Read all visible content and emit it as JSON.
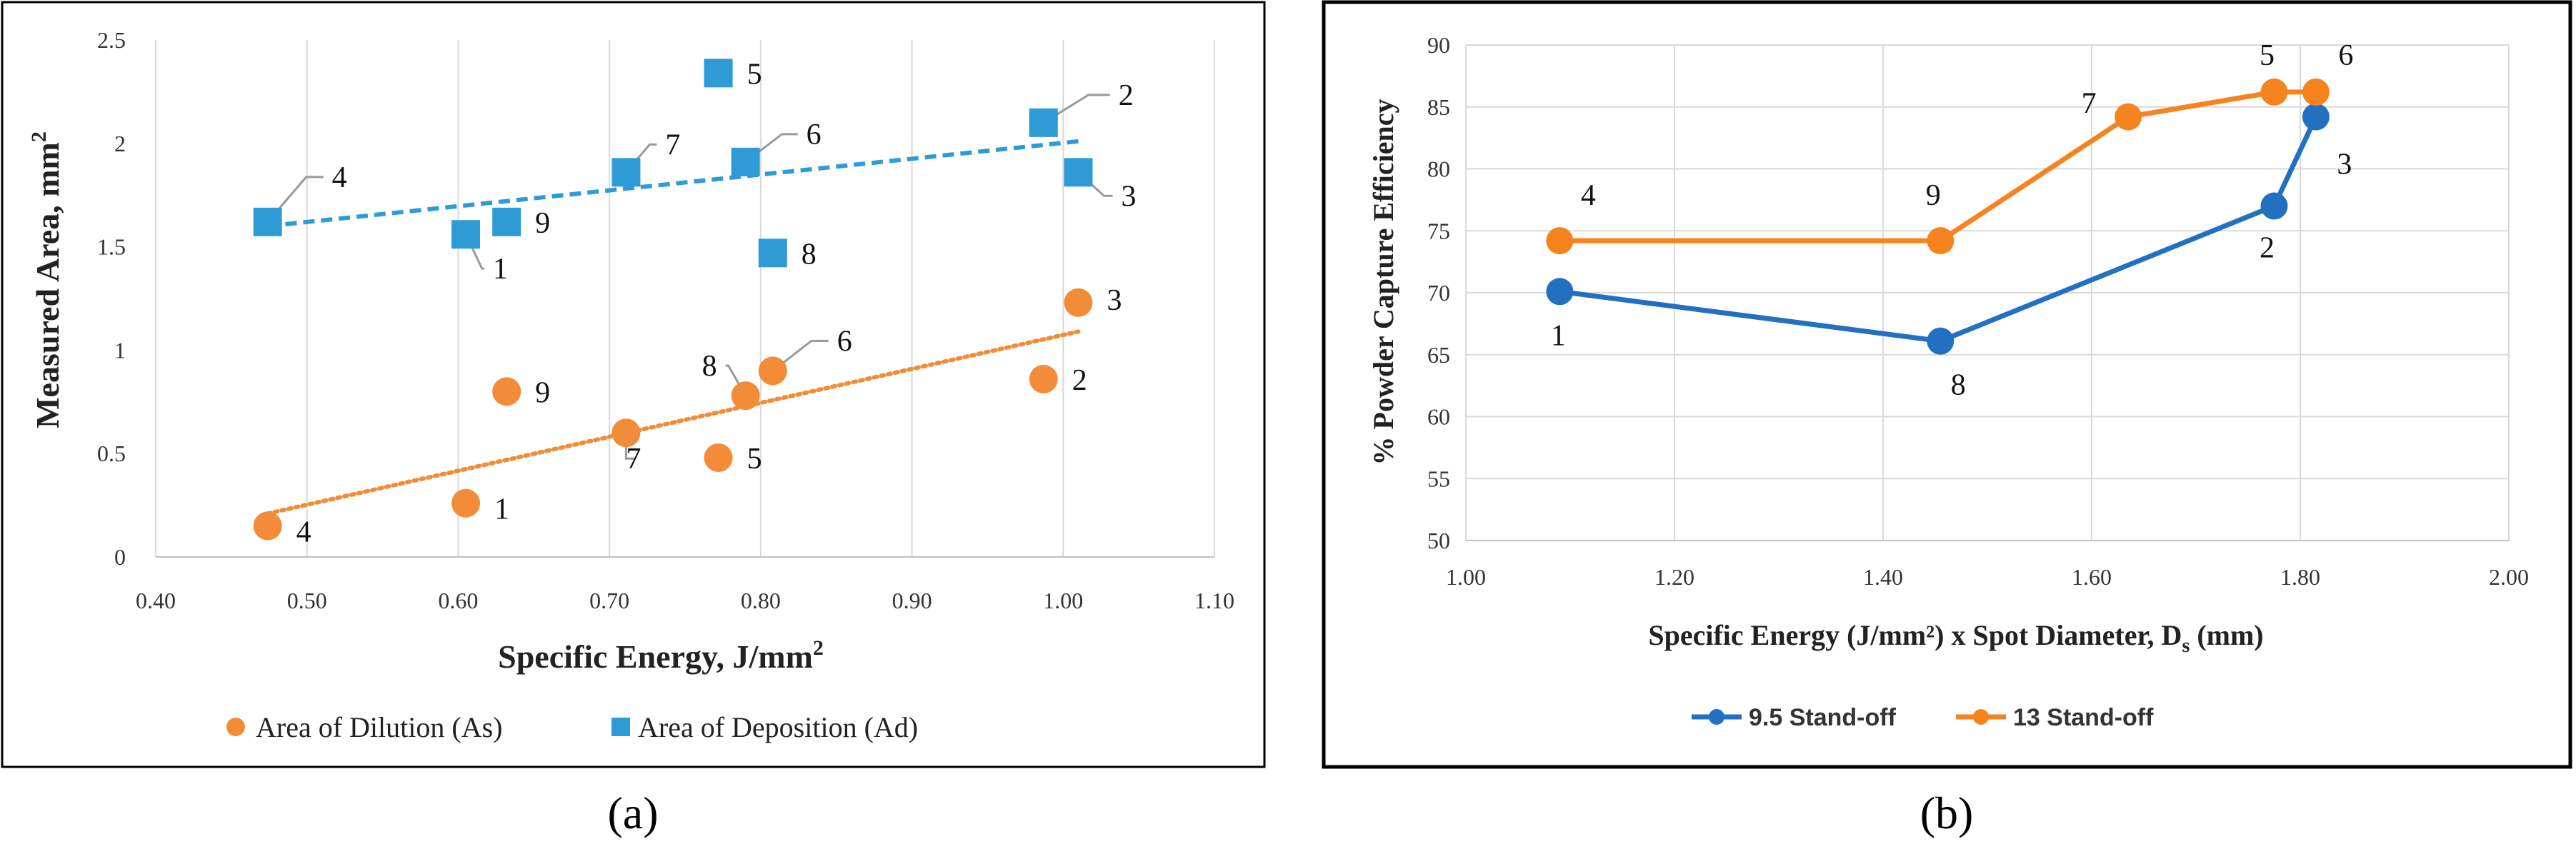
{
  "colors": {
    "orange": "#F28C38",
    "blue": "#2E9BD6",
    "blue_b": "#2470C0",
    "orange_b": "#F5841F",
    "grid": "#d9d9d9"
  },
  "panels": {
    "a_caption": "(a)",
    "b_caption": "(b)"
  },
  "chart_data": [
    {
      "id": "a",
      "type": "scatter",
      "xlabel": "Specific Energy, J/mm",
      "xlabel_sup": "2",
      "ylabel": "Measured Area, mm",
      "ylabel_sup": "2",
      "xlim": [
        0.4,
        1.1
      ],
      "ylim": [
        0,
        2.5
      ],
      "x_ticks": [
        "0.40",
        "0.50",
        "0.60",
        "0.70",
        "0.80",
        "0.90",
        "1.00",
        "1.10"
      ],
      "y_ticks": [
        "0",
        "0.5",
        "1",
        "1.5",
        "2",
        "2.5"
      ],
      "grid": "vertical",
      "legend_position": "bottom",
      "series": [
        {
          "name": "Area of Dilution (As)",
          "marker": "circle",
          "color": "#F28C38",
          "trend": {
            "style": "dotted",
            "from": [
              0.474,
              0.21
            ],
            "to": [
              1.01,
              1.09
            ]
          },
          "points": [
            {
              "x": 0.474,
              "y": 0.15,
              "label": "4"
            },
            {
              "x": 0.605,
              "y": 0.26,
              "label": "1"
            },
            {
              "x": 0.632,
              "y": 0.8,
              "label": "9"
            },
            {
              "x": 0.711,
              "y": 0.6,
              "label": "7"
            },
            {
              "x": 0.772,
              "y": 0.48,
              "label": "5"
            },
            {
              "x": 0.79,
              "y": 0.78,
              "label": "8"
            },
            {
              "x": 0.808,
              "y": 0.9,
              "label": "6"
            },
            {
              "x": 0.987,
              "y": 0.86,
              "label": "2"
            },
            {
              "x": 1.01,
              "y": 1.23,
              "label": "3"
            }
          ]
        },
        {
          "name": "Area of Deposition (Ad)",
          "marker": "square",
          "color": "#2E9BD6",
          "trend": {
            "style": "dashed",
            "from": [
              0.474,
              1.6
            ],
            "to": [
              1.01,
              2.01
            ]
          },
          "points": [
            {
              "x": 0.474,
              "y": 1.62,
              "label": "4"
            },
            {
              "x": 0.605,
              "y": 1.56,
              "label": "1"
            },
            {
              "x": 0.632,
              "y": 1.62,
              "label": "9"
            },
            {
              "x": 0.711,
              "y": 1.86,
              "label": "7"
            },
            {
              "x": 0.772,
              "y": 2.34,
              "label": "5"
            },
            {
              "x": 0.79,
              "y": 1.91,
              "label": "6"
            },
            {
              "x": 0.808,
              "y": 1.47,
              "label": "8"
            },
            {
              "x": 0.987,
              "y": 2.1,
              "label": "2"
            },
            {
              "x": 1.01,
              "y": 1.86,
              "label": "3"
            }
          ]
        }
      ]
    },
    {
      "id": "b",
      "type": "line",
      "xlabel": "Specific Energy (J/mm²) x Spot Diameter, D",
      "xlabel_sub": "s",
      "xlabel_tail": " (mm)",
      "ylabel": "% Powder Capture Efficiency",
      "xlim": [
        1.0,
        2.0
      ],
      "ylim": [
        50,
        90
      ],
      "x_ticks": [
        "1.00",
        "1.20",
        "1.40",
        "1.60",
        "1.80",
        "2.00"
      ],
      "y_ticks": [
        "50",
        "55",
        "60",
        "65",
        "70",
        "75",
        "80",
        "85",
        "90"
      ],
      "grid": "both",
      "legend_position": "bottom",
      "series": [
        {
          "name": "9.5 Stand-off",
          "color": "#2470C0",
          "points": [
            {
              "x": 1.09,
              "y": 70.1,
              "label": "1"
            },
            {
              "x": 1.455,
              "y": 66.1,
              "label": "8"
            },
            {
              "x": 1.775,
              "y": 77.0,
              "label": "2"
            },
            {
              "x": 1.815,
              "y": 84.2,
              "label": "3"
            }
          ]
        },
        {
          "name": "13 Stand-off",
          "color": "#F5841F",
          "points": [
            {
              "x": 1.09,
              "y": 74.2,
              "label": "4"
            },
            {
              "x": 1.455,
              "y": 74.2,
              "label": "9"
            },
            {
              "x": 1.635,
              "y": 84.2,
              "label": "7"
            },
            {
              "x": 1.775,
              "y": 86.2,
              "label": "5"
            },
            {
              "x": 1.815,
              "y": 86.2,
              "label": "6"
            }
          ]
        }
      ]
    }
  ]
}
